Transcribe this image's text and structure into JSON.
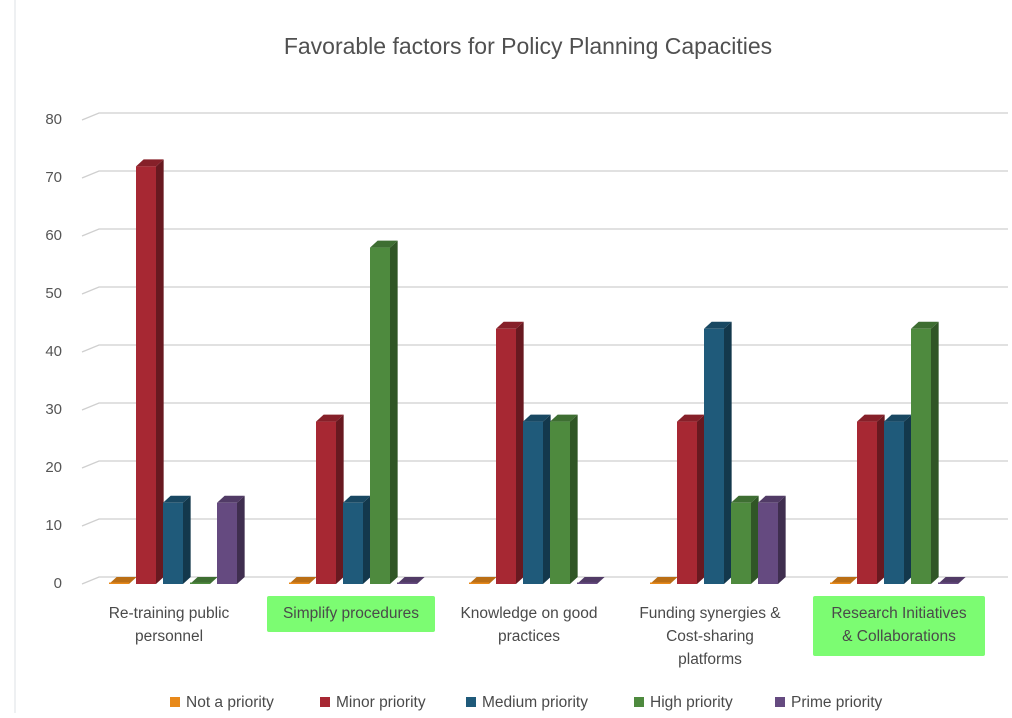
{
  "chart_data": {
    "type": "bar",
    "title": "Favorable factors for Policy Planning Capacities",
    "xlabel": "",
    "ylabel": "",
    "ylim": [
      0,
      80
    ],
    "yticks": [
      0,
      10,
      20,
      30,
      40,
      50,
      60,
      70,
      80
    ],
    "grid": true,
    "legend_position": "bottom",
    "categories": [
      "Re-training public personnel",
      "Simplify procedures",
      "Knowledge on good practices",
      "Funding synergies & Cost-sharing platforms",
      "Research Initiatives & Collaborations"
    ],
    "category_label_lines": [
      [
        "Re-training public",
        "personnel"
      ],
      [
        "Simplify procedures"
      ],
      [
        "Knowledge on good",
        "practices"
      ],
      [
        "Funding synergies &",
        "Cost-sharing",
        "platforms"
      ],
      [
        "Research Initiatives",
        "& Collaborations"
      ]
    ],
    "highlighted_categories": [
      false,
      true,
      false,
      false,
      true
    ],
    "series": [
      {
        "name": "Not a priority",
        "color": "#e8891a",
        "values": [
          0,
          0,
          0,
          0,
          0
        ]
      },
      {
        "name": "Minor priority",
        "color": "#a72833",
        "values": [
          72,
          28,
          44,
          28,
          28
        ]
      },
      {
        "name": "Medium priority",
        "color": "#1f5a7a",
        "values": [
          14,
          14,
          28,
          44,
          28
        ]
      },
      {
        "name": "High priority",
        "color": "#4e8a3e",
        "values": [
          0,
          58,
          28,
          14,
          44
        ]
      },
      {
        "name": "Prime priority",
        "color": "#654a80",
        "values": [
          14,
          0,
          0,
          14,
          0
        ]
      }
    ],
    "highlight_color": "#7cfc72"
  }
}
